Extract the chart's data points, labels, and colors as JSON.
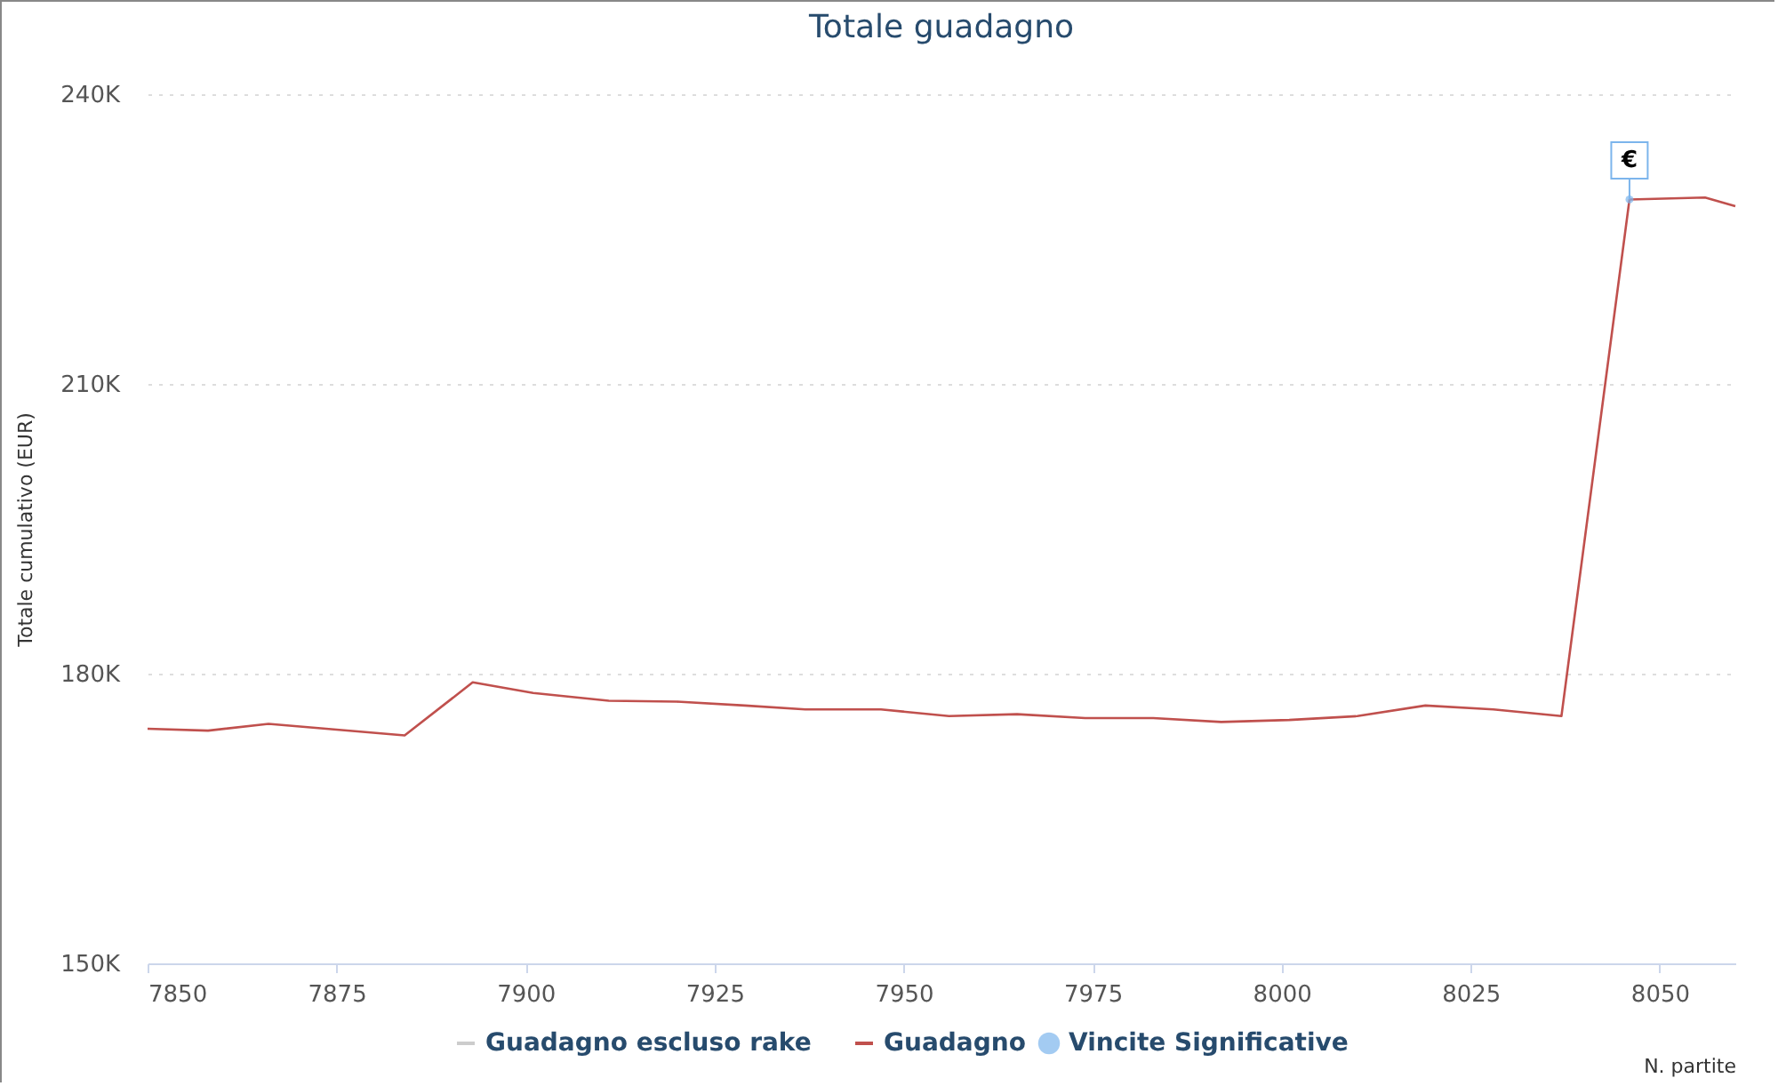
{
  "chart_data": {
    "type": "line",
    "title": "Totale guadagno",
    "xlabel": "N. partite",
    "ylabel": "Totale cumulativo (EUR)",
    "x": [
      7850,
      7858,
      7866,
      7884,
      7893,
      7901,
      7911,
      7920,
      7929,
      7937,
      7947,
      7956,
      7965,
      7974,
      7983,
      7992,
      8001,
      8010,
      8019,
      8028,
      8037,
      8046,
      8056,
      8060
    ],
    "series": [
      {
        "name": "Guadagno escluso rake",
        "color": "#cccccc",
        "values": [
          null,
          null,
          null,
          null,
          null,
          null,
          null,
          null,
          null,
          null,
          null,
          null,
          null,
          null,
          null,
          null,
          null,
          null,
          null,
          null,
          null,
          null,
          null,
          null
        ]
      },
      {
        "name": "Guadagno",
        "color": "#c0504d",
        "values": [
          174300,
          174100,
          174800,
          173600,
          179100,
          178000,
          177200,
          177100,
          176700,
          176300,
          176300,
          175600,
          175800,
          175400,
          175400,
          175000,
          175200,
          175600,
          176700,
          176300,
          175600,
          229100,
          229300,
          228400
        ]
      },
      {
        "name": "Vincite Significative",
        "type": "scatter",
        "marker": "circle",
        "color": "#7cb5ec",
        "x": [
          8046
        ],
        "values": [
          229100
        ]
      }
    ],
    "annotations": [
      {
        "text": "€",
        "x": 8046,
        "y": 229100
      }
    ],
    "xlim": [
      7850,
      8060
    ],
    "xticks": [
      7850,
      7875,
      7900,
      7925,
      7950,
      7975,
      8000,
      8025,
      8050
    ],
    "ylim": [
      150000,
      240000
    ],
    "yticks": [
      {
        "value": 150000,
        "label": "150K"
      },
      {
        "value": 180000,
        "label": "180K"
      },
      {
        "value": 210000,
        "label": "210K"
      },
      {
        "value": 240000,
        "label": "240K"
      }
    ],
    "grid": "y",
    "legend": "bottom",
    "line_style": "solid"
  }
}
